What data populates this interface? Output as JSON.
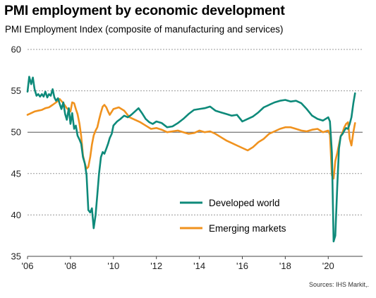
{
  "title": "PMI employment by economic development",
  "subtitle": "PMI Employment  Index (composite of manufacturing and services)",
  "source": "Sources: IHS Markit,.",
  "chart_data": {
    "type": "line",
    "xlim": [
      2006.0,
      2021.6
    ],
    "ylim": [
      35,
      60
    ],
    "yticks": [
      35,
      40,
      45,
      50,
      55,
      60
    ],
    "xticks": [
      2006,
      2008,
      2010,
      2012,
      2014,
      2016,
      2018,
      2020
    ],
    "xtick_labels": [
      "'06",
      "'08",
      "'10",
      "'12",
      "'14",
      "'16",
      "'18",
      "'20"
    ],
    "reference_line": 50,
    "grid": "horizontal dashed",
    "legend_position": "bottom-center",
    "series": [
      {
        "name": "Developed world",
        "color": "#0e8a7a",
        "x": [
          2006.0,
          2006.08,
          2006.17,
          2006.25,
          2006.33,
          2006.42,
          2006.5,
          2006.58,
          2006.67,
          2006.75,
          2006.83,
          2006.92,
          2007.0,
          2007.08,
          2007.17,
          2007.25,
          2007.33,
          2007.42,
          2007.5,
          2007.58,
          2007.67,
          2007.75,
          2007.83,
          2007.92,
          2008.0,
          2008.08,
          2008.17,
          2008.25,
          2008.33,
          2008.42,
          2008.5,
          2008.58,
          2008.67,
          2008.75,
          2008.83,
          2008.92,
          2009.0,
          2009.08,
          2009.17,
          2009.25,
          2009.33,
          2009.42,
          2009.5,
          2009.58,
          2009.67,
          2009.75,
          2009.83,
          2009.92,
          2010.0,
          2010.17,
          2010.33,
          2010.5,
          2010.67,
          2010.83,
          2011.0,
          2011.17,
          2011.33,
          2011.5,
          2011.67,
          2011.83,
          2012.0,
          2012.25,
          2012.5,
          2012.75,
          2013.0,
          2013.25,
          2013.5,
          2013.75,
          2014.0,
          2014.25,
          2014.5,
          2014.75,
          2015.0,
          2015.25,
          2015.5,
          2015.75,
          2016.0,
          2016.25,
          2016.5,
          2016.75,
          2017.0,
          2017.25,
          2017.5,
          2017.75,
          2018.0,
          2018.25,
          2018.5,
          2018.75,
          2019.0,
          2019.25,
          2019.5,
          2019.75,
          2020.0,
          2020.08,
          2020.17,
          2020.25,
          2020.33,
          2020.42,
          2020.5,
          2020.58,
          2020.67,
          2020.75,
          2020.83,
          2020.92,
          2021.0,
          2021.08,
          2021.17,
          2021.25
        ],
        "values": [
          54.9,
          56.7,
          55.8,
          56.6,
          55.2,
          54.4,
          54.6,
          54.3,
          54.6,
          54.3,
          54.9,
          54.2,
          54.6,
          54.4,
          55.2,
          54.2,
          53.8,
          54.1,
          53.4,
          52.8,
          53.6,
          52.2,
          51.5,
          52.9,
          51.0,
          52.3,
          50.4,
          50.8,
          49.6,
          49.1,
          48.6,
          47.0,
          46.2,
          44.8,
          40.6,
          40.3,
          40.8,
          38.4,
          40.0,
          42.5,
          45.0,
          47.0,
          47.6,
          47.4,
          48.0,
          48.6,
          49.3,
          49.8,
          50.8,
          51.3,
          51.6,
          52.0,
          51.8,
          52.1,
          52.5,
          52.9,
          52.3,
          51.6,
          51.2,
          51.0,
          51.3,
          51.1,
          50.6,
          50.7,
          51.1,
          51.6,
          52.2,
          52.7,
          52.8,
          52.9,
          53.1,
          52.6,
          52.4,
          52.2,
          52.0,
          52.1,
          51.3,
          51.6,
          51.9,
          52.4,
          53.0,
          53.3,
          53.6,
          53.8,
          53.9,
          53.7,
          53.8,
          53.5,
          52.8,
          52.0,
          51.6,
          51.4,
          51.8,
          51.3,
          47.5,
          36.8,
          37.5,
          43.5,
          48.0,
          49.5,
          49.8,
          50.2,
          50.5,
          50.4,
          51.0,
          51.8,
          53.5,
          54.7
        ]
      },
      {
        "name": "Emerging  markets",
        "color": "#f0921e",
        "x": [
          2006.0,
          2006.17,
          2006.33,
          2006.5,
          2006.67,
          2006.83,
          2007.0,
          2007.17,
          2007.33,
          2007.5,
          2007.67,
          2007.83,
          2008.0,
          2008.08,
          2008.17,
          2008.25,
          2008.33,
          2008.42,
          2008.5,
          2008.58,
          2008.67,
          2008.75,
          2008.83,
          2008.92,
          2009.0,
          2009.08,
          2009.17,
          2009.25,
          2009.33,
          2009.42,
          2009.5,
          2009.58,
          2009.67,
          2009.75,
          2009.83,
          2010.0,
          2010.25,
          2010.5,
          2010.75,
          2011.0,
          2011.25,
          2011.5,
          2011.75,
          2012.0,
          2012.25,
          2012.5,
          2012.75,
          2013.0,
          2013.25,
          2013.5,
          2013.75,
          2014.0,
          2014.25,
          2014.5,
          2014.75,
          2015.0,
          2015.25,
          2015.5,
          2015.75,
          2016.0,
          2016.25,
          2016.5,
          2016.75,
          2017.0,
          2017.25,
          2017.5,
          2017.75,
          2018.0,
          2018.25,
          2018.5,
          2018.75,
          2019.0,
          2019.25,
          2019.5,
          2019.75,
          2020.0,
          2020.08,
          2020.17,
          2020.25,
          2020.33,
          2020.42,
          2020.5,
          2020.58,
          2020.67,
          2020.75,
          2020.83,
          2020.92,
          2021.0,
          2021.08,
          2021.17,
          2021.25
        ],
        "values": [
          52.1,
          52.3,
          52.5,
          52.6,
          52.7,
          52.9,
          53.0,
          53.3,
          53.6,
          54.0,
          53.5,
          52.9,
          52.5,
          53.6,
          53.5,
          52.8,
          52.2,
          51.0,
          49.5,
          47.2,
          46.2,
          45.6,
          45.8,
          47.0,
          48.5,
          49.6,
          50.2,
          50.6,
          51.5,
          52.4,
          53.1,
          53.3,
          53.0,
          52.5,
          52.1,
          52.8,
          53.0,
          52.6,
          51.8,
          51.5,
          51.2,
          50.8,
          50.4,
          50.5,
          50.3,
          50.0,
          50.1,
          50.2,
          50.0,
          49.8,
          49.9,
          50.2,
          50.0,
          50.1,
          49.8,
          49.4,
          49.0,
          48.7,
          48.4,
          48.1,
          47.8,
          48.2,
          48.8,
          49.2,
          49.8,
          50.1,
          50.4,
          50.6,
          50.6,
          50.4,
          50.2,
          50.1,
          50.3,
          50.4,
          50.0,
          50.2,
          49.7,
          44.8,
          44.4,
          46.5,
          47.5,
          48.5,
          49.5,
          50.0,
          50.6,
          51.0,
          51.2,
          49.2,
          48.4,
          50.0,
          51.1
        ]
      }
    ]
  }
}
